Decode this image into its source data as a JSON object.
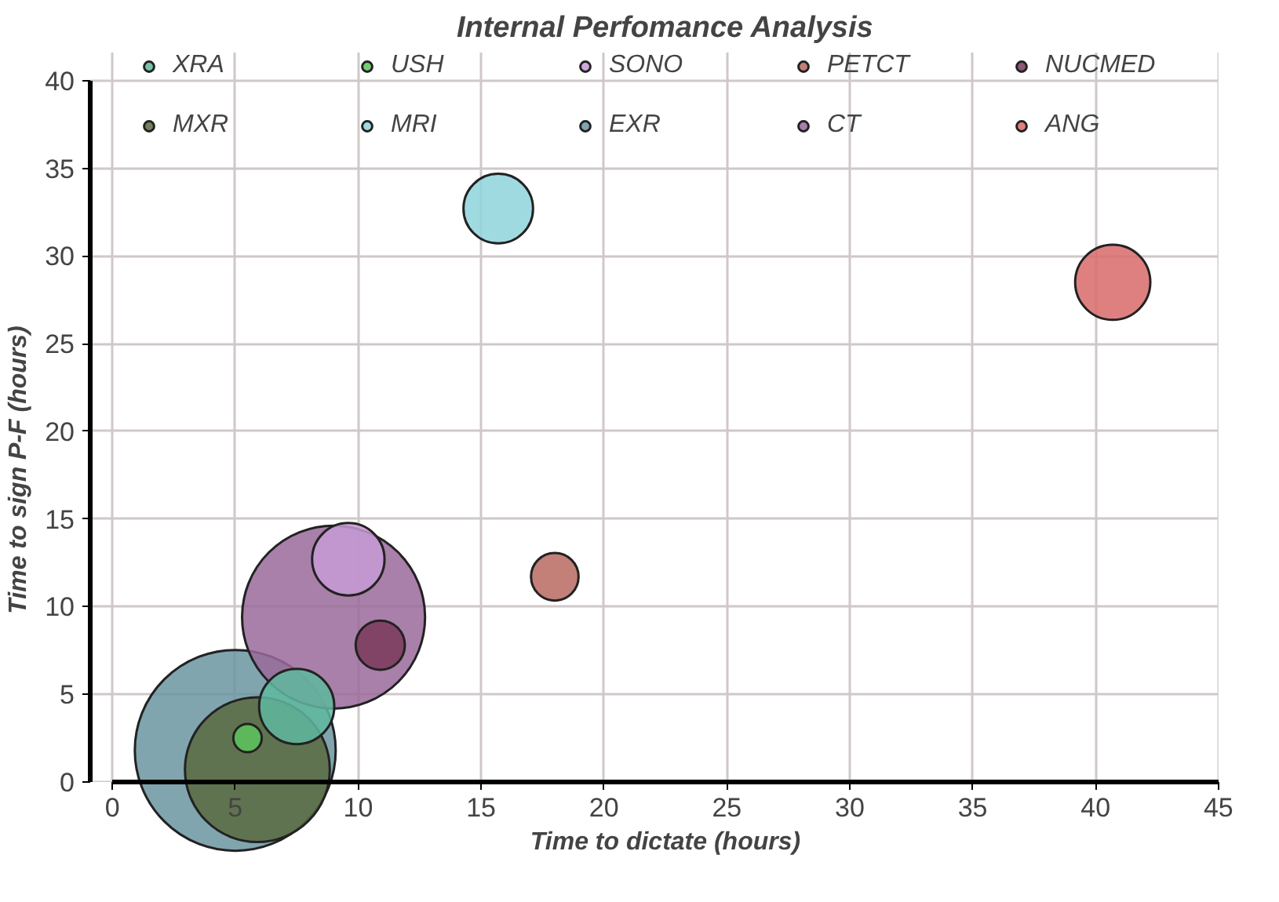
{
  "chart_data": {
    "type": "bubble",
    "title": "Internal Perfomance Analysis",
    "xlabel": "Time to dictate (hours)",
    "ylabel": "Time to sign P-F (hours)",
    "xlim": [
      0,
      45
    ],
    "xticks": [
      0,
      5,
      10,
      15,
      20,
      25,
      30,
      35,
      40,
      45
    ],
    "ylim": [
      0,
      40
    ],
    "yticks": [
      0,
      5,
      10,
      15,
      20,
      25,
      30,
      35,
      40
    ],
    "grid": true,
    "legend": "top",
    "series": [
      {
        "name": "XRA",
        "color": "#5fb8a0",
        "x": [
          7.5
        ],
        "values": [
          4.3
        ],
        "sizes": [
          0.14
        ]
      },
      {
        "name": "USH",
        "color": "#5cc45c",
        "x": [
          5.5
        ],
        "values": [
          2.5
        ],
        "sizes": [
          0.02
        ]
      },
      {
        "name": "SONO",
        "color": "#c79ad6",
        "x": [
          9.6
        ],
        "values": [
          12.7
        ],
        "sizes": [
          0.13
        ]
      },
      {
        "name": "PETCT",
        "color": "#b86a60",
        "x": [
          18
        ],
        "values": [
          11.7
        ],
        "sizes": [
          0.056
        ]
      },
      {
        "name": "NUCMED",
        "color": "#7a3a5a",
        "x": [
          10.9
        ],
        "values": [
          7.8
        ],
        "sizes": [
          0.06
        ]
      },
      {
        "name": "MXR",
        "color": "#5a6a40",
        "x": [
          5.9
        ],
        "values": [
          0.7
        ],
        "sizes": [
          0.52
        ]
      },
      {
        "name": "MRI",
        "color": "#8fd3dc",
        "x": [
          15.7
        ],
        "values": [
          32.7
        ],
        "sizes": [
          0.12
        ]
      },
      {
        "name": "EXR",
        "color": "#6a95a0",
        "x": [
          5
        ],
        "values": [
          1.8
        ],
        "sizes": [
          1
        ]
      },
      {
        "name": "CT",
        "color": "#9a6a9a",
        "x": [
          9
        ],
        "values": [
          9.4
        ],
        "sizes": [
          0.83
        ]
      },
      {
        "name": "ANG",
        "color": "#d96a6a",
        "x": [
          40.7
        ],
        "values": [
          28.5
        ],
        "sizes": [
          0.14
        ]
      }
    ]
  }
}
